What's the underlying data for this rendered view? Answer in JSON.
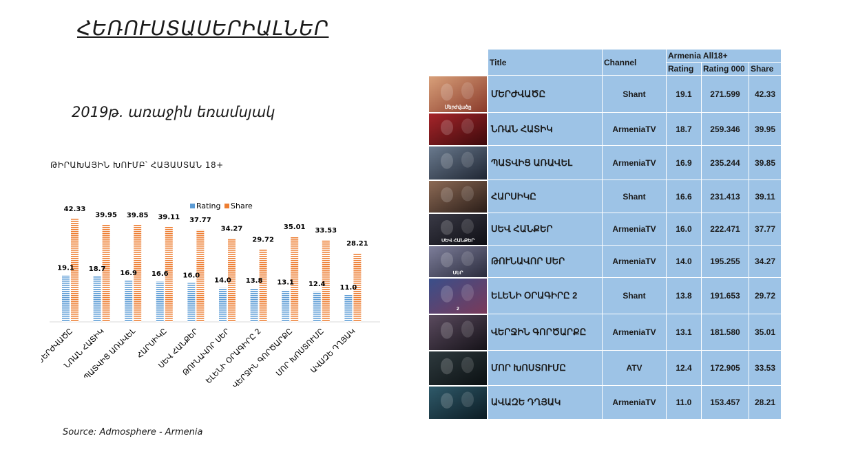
{
  "page": {
    "title": "ՀԵՌՈՒՍՏԱՍԵՐԻԱԼՆԵՐ",
    "subtitle": "2019թ. առաջին եռամսյակ",
    "panel_label": "ԹԻՐԱԽԱՅԻՆ ԽՈՒՄԲ՝ ՀԱՅԱՍՏԱՆ 18+",
    "source": "Source: Admosphere - Armenia"
  },
  "colors": {
    "rating": "#5b9bd5",
    "share": "#ed7d31",
    "table_bg": "#9dc3e6"
  },
  "chart_data": {
    "type": "bar",
    "categories": [
      "ՄԵՐԺՎԱԾԸ",
      "ՆՌԱՆ ՀԱՏԻԿ",
      "ՊԱՏՎԻՑ ԱՌԱՎԵԼ",
      "ՀԱՐՍԻԿԸ",
      "ՍԵՎ ՀԱՆՔԵՐ",
      "ԹՈՒՆԱՎՈՐ ՍԵՐ",
      "ԵԼԵՆԻ ՕՐԱԳԻՐԸ 2",
      "ՎԵՐՋԻՆ ԳՈՐԾԱՐՔԸ",
      "ՄՈՐ ԽՈՍՏՈՒՄԸ",
      "ԱՎԱԶԵ ԴՂՅԱԿ"
    ],
    "series": [
      {
        "name": "Rating",
        "values": [
          19.1,
          18.7,
          16.9,
          16.6,
          16.0,
          14.0,
          13.8,
          13.1,
          12.4,
          11.0
        ]
      },
      {
        "name": "Share",
        "values": [
          42.33,
          39.95,
          39.85,
          39.11,
          37.77,
          34.27,
          29.72,
          35.01,
          33.53,
          28.21
        ]
      }
    ],
    "value_labels": {
      "Rating": [
        "19.1",
        "18.7",
        "16.9",
        "16.6",
        "16.0",
        "14.0",
        "13.8",
        "13.1",
        "12.4",
        "11.0"
      ],
      "Share": [
        "42.33",
        "39.95",
        "39.85",
        "39.11",
        "37.77",
        "34.27",
        "29.72",
        "35.01",
        "33.53",
        "28.21"
      ]
    },
    "ylim": [
      0,
      48
    ],
    "legend": "top-center",
    "grid": false
  },
  "table": {
    "columns": {
      "title": "Title",
      "channel": "Channel",
      "group": "Armenia All18+",
      "rating": "Rating",
      "rating000": "Rating 000",
      "share": "Share"
    },
    "rows": [
      {
        "title": "ՄԵՐԺՎԱԾԸ",
        "channel": "Shant",
        "rating": "19.1",
        "rating000": "271.599",
        "share": "42.33",
        "thumb_caption": "Մերժվածը"
      },
      {
        "title": "ՆՌԱՆ ՀԱՏԻԿ",
        "channel": "ArmeniaTV",
        "rating": "18.7",
        "rating000": "259.346",
        "share": "39.95",
        "thumb_caption": ""
      },
      {
        "title": "ՊԱՏՎԻՑ ԱՌԱՎԵԼ",
        "channel": "ArmeniaTV",
        "rating": "16.9",
        "rating000": "235.244",
        "share": "39.85",
        "thumb_caption": ""
      },
      {
        "title": "ՀԱՐՍԻԿԸ",
        "channel": "Shant",
        "rating": "16.6",
        "rating000": "231.413",
        "share": "39.11",
        "thumb_caption": ""
      },
      {
        "title": "ՍԵՎ ՀԱՆՔԵՐ",
        "channel": "ArmeniaTV",
        "rating": "16.0",
        "rating000": "222.471",
        "share": "37.77",
        "thumb_caption": "ՍԵՎ ՀԱՆՔԵՐ"
      },
      {
        "title": "ԹՈՒՆԱՎՈՐ ՍԵՐ",
        "channel": "ArmeniaTV",
        "rating": "14.0",
        "rating000": "195.255",
        "share": "34.27",
        "thumb_caption": "ՍԵՐ"
      },
      {
        "title": "ԵԼԵՆԻ ՕՐԱԳԻՐԸ 2",
        "channel": "Shant",
        "rating": "13.8",
        "rating000": "191.653",
        "share": "29.72",
        "thumb_caption": "2"
      },
      {
        "title": "ՎԵՐՋԻՆ ԳՈՐԾԱՐՔԸ",
        "channel": "ArmeniaTV",
        "rating": "13.1",
        "rating000": "181.580",
        "share": "35.01",
        "thumb_caption": ""
      },
      {
        "title": "ՄՈՐ ԽՈՍՏՈՒՄԸ",
        "channel": "ATV",
        "rating": "12.4",
        "rating000": "172.905",
        "share": "33.53",
        "thumb_caption": ""
      },
      {
        "title": "ԱՎԱԶԵ ԴՂՅԱԿ",
        "channel": "ArmeniaTV",
        "rating": "11.0",
        "rating000": "153.457",
        "share": "28.21",
        "thumb_caption": ""
      }
    ],
    "thumb_palettes": [
      [
        "#d8a07a",
        "#8a3a2a"
      ],
      [
        "#a6252a",
        "#3c0a0c"
      ],
      [
        "#6a7a8e",
        "#1f2633"
      ],
      [
        "#8c6a55",
        "#2a1d18"
      ],
      [
        "#3a3a46",
        "#0e0e14"
      ],
      [
        "#7d7e9a",
        "#2a2b3c"
      ],
      [
        "#3a4f8a",
        "#7a3a5a"
      ],
      [
        "#5a4a5e",
        "#151218"
      ],
      [
        "#2e3a3e",
        "#0b1012"
      ],
      [
        "#2f5a6a",
        "#0c1c24"
      ]
    ]
  }
}
